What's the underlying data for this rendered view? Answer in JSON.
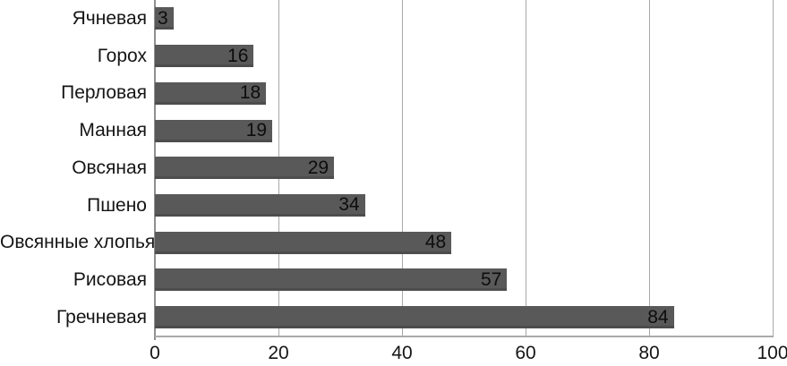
{
  "chart_data": {
    "type": "bar",
    "orientation": "horizontal",
    "title": "",
    "xlabel": "",
    "ylabel": "",
    "categories": [
      "Ячневая",
      "Горох",
      "Перловая",
      "Манная",
      "Овсяная",
      "Пшено",
      "Овсянные хлопья",
      "Рисовая",
      "Гречневая"
    ],
    "values": [
      3,
      16,
      18,
      19,
      29,
      34,
      48,
      57,
      84
    ],
    "data_labels_shown": true,
    "x_ticks": [
      "0",
      "20",
      "40",
      "60",
      "80",
      "100"
    ],
    "x_tick_values": [
      0,
      20,
      40,
      60,
      80,
      100
    ],
    "xlim": [
      0,
      100
    ],
    "grid": true,
    "legend": "none",
    "colors": {
      "bar_fill": "#595959",
      "bar_fill_bottom_edge": "#4d4d4d",
      "gridline": "#a9a9a9",
      "y_axis_line": "#8f8f8f",
      "x_axis_line": "#a9a9a9",
      "label_text": "#151515",
      "value_text": "#0d0d0d",
      "background": "#ffffff"
    }
  }
}
